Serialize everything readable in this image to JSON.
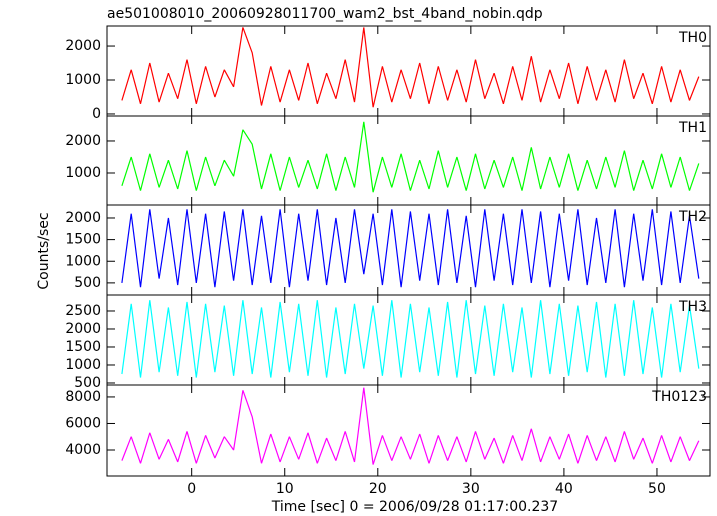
{
  "chart_data": {
    "type": "line",
    "title": "ae501008010_20060928011700_wam2_bst_4band_nobin.qdp",
    "xlabel": "Time [sec] 0 = 2006/09/28 01:17:00.237",
    "ylabel": "Counts/sec",
    "xlim": [
      -9.1,
      55.7
    ],
    "xticks": [
      0,
      10,
      20,
      30,
      40,
      50
    ],
    "x": [
      -7.5,
      -6.5,
      -5.5,
      -4.5,
      -3.5,
      -2.5,
      -1.5,
      -0.5,
      0.5,
      1.5,
      2.5,
      3.5,
      4.5,
      5.5,
      6.5,
      7.5,
      8.5,
      9.5,
      10.5,
      11.5,
      12.5,
      13.5,
      14.5,
      15.5,
      16.5,
      17.5,
      18.5,
      19.5,
      20.5,
      21.5,
      22.5,
      23.5,
      24.5,
      25.5,
      26.5,
      27.5,
      28.5,
      29.5,
      30.5,
      31.5,
      32.5,
      33.5,
      34.5,
      35.5,
      36.5,
      37.5,
      38.5,
      39.5,
      40.5,
      41.5,
      42.5,
      43.5,
      44.5,
      45.5,
      46.5,
      47.5,
      48.5,
      49.5,
      50.5,
      51.5,
      52.5,
      53.5,
      54.5
    ],
    "series": [
      {
        "name": "TH0",
        "color": "#ff0000",
        "ylim": [
          -60,
          2590
        ],
        "yticks": [
          0,
          1000,
          2000
        ],
        "values": [
          400,
          1300,
          300,
          1500,
          350,
          1200,
          450,
          1600,
          300,
          1400,
          500,
          1300,
          800,
          2550,
          1800,
          250,
          1400,
          350,
          1300,
          400,
          1500,
          300,
          1200,
          450,
          1600,
          350,
          2550,
          200,
          1400,
          350,
          1300,
          450,
          1500,
          300,
          1400,
          400,
          1300,
          350,
          1600,
          450,
          1200,
          300,
          1400,
          400,
          1700,
          350,
          1300,
          450,
          1500,
          300,
          1400,
          400,
          1300,
          350,
          1600,
          450,
          1200,
          300,
          1400,
          350,
          1300,
          400,
          1100
        ]
      },
      {
        "name": "TH1",
        "color": "#00ff00",
        "ylim": [
          0,
          2780
        ],
        "yticks": [
          1000,
          2000
        ],
        "values": [
          600,
          1500,
          450,
          1600,
          550,
          1400,
          500,
          1700,
          450,
          1500,
          600,
          1400,
          900,
          2350,
          1900,
          500,
          1600,
          450,
          1500,
          550,
          1400,
          500,
          1600,
          450,
          1500,
          550,
          2600,
          400,
          1500,
          550,
          1600,
          450,
          1400,
          500,
          1700,
          550,
          1500,
          450,
          1600,
          500,
          1400,
          550,
          1500,
          450,
          1800,
          500,
          1500,
          550,
          1600,
          450,
          1400,
          500,
          1500,
          550,
          1700,
          450,
          1400,
          500,
          1600,
          550,
          1500,
          450,
          1300
        ]
      },
      {
        "name": "TH2",
        "color": "#0000ff",
        "ylim": [
          220,
          2300
        ],
        "yticks": [
          500,
          1000,
          1500,
          2000
        ],
        "values": [
          500,
          2100,
          400,
          2200,
          600,
          2000,
          450,
          2200,
          500,
          2100,
          400,
          2150,
          550,
          2200,
          450,
          2050,
          500,
          2200,
          400,
          2100,
          550,
          2200,
          450,
          2000,
          500,
          2200,
          700,
          2100,
          450,
          2200,
          400,
          2150,
          550,
          2100,
          450,
          2200,
          500,
          2050,
          400,
          2200,
          550,
          2100,
          450,
          2200,
          500,
          2150,
          400,
          2100,
          550,
          2200,
          450,
          2000,
          500,
          2200,
          400,
          2100,
          550,
          2200,
          450,
          2150,
          500,
          2050,
          600
        ]
      },
      {
        "name": "TH3",
        "color": "#00ffff",
        "ylim": [
          444,
          2944
        ],
        "yticks": [
          500,
          1000,
          1500,
          2000,
          2500
        ],
        "values": [
          750,
          2700,
          650,
          2800,
          800,
          2600,
          700,
          2750,
          650,
          2700,
          800,
          2650,
          700,
          2800,
          750,
          2600,
          650,
          2750,
          800,
          2700,
          700,
          2800,
          650,
          2600,
          750,
          2700,
          900,
          2650,
          700,
          2800,
          650,
          2700,
          800,
          2600,
          700,
          2750,
          650,
          2800,
          750,
          2650,
          700,
          2700,
          800,
          2600,
          650,
          2800,
          750,
          2700,
          700,
          2650,
          800,
          2750,
          650,
          2700,
          700,
          2800,
          750,
          2600,
          650,
          2700,
          800,
          2650,
          900
        ]
      },
      {
        "name": "TH0123",
        "color": "#ff00ff",
        "ylim": [
          2040,
          8900
        ],
        "yticks": [
          4000,
          6000,
          8000
        ],
        "values": [
          3200,
          5000,
          3000,
          5300,
          3300,
          4800,
          3100,
          5400,
          3000,
          5100,
          3400,
          5000,
          4000,
          8500,
          6500,
          3000,
          5200,
          3100,
          5000,
          3300,
          5300,
          3000,
          4900,
          3200,
          5400,
          3100,
          8700,
          2900,
          5100,
          3200,
          5000,
          3300,
          5200,
          3000,
          5100,
          3200,
          5000,
          3100,
          5400,
          3300,
          4900,
          3000,
          5100,
          3200,
          5600,
          3100,
          5000,
          3300,
          5200,
          3000,
          5100,
          3200,
          5000,
          3100,
          5400,
          3300,
          4900,
          3000,
          5100,
          3100,
          5000,
          3200,
          4700
        ]
      }
    ]
  }
}
